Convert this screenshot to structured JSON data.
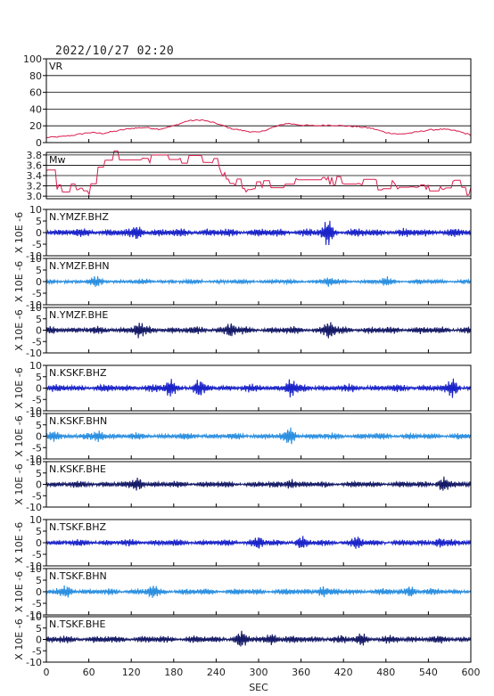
{
  "header": {
    "datetime": "2022/10/27 02:20"
  },
  "colors": {
    "vr_line": "#d81e4e",
    "bhz": "#1a23c8",
    "bhn": "#2b8fe0",
    "bhe": "#151a66",
    "frame": "#000000"
  },
  "chart_data": [
    {
      "type": "line",
      "label": "VR",
      "ylim": [
        0,
        100
      ],
      "yticks": [
        0,
        20,
        40,
        60,
        80,
        100
      ],
      "grid": true,
      "color": "#d81e4e",
      "x": [
        0,
        20,
        40,
        60,
        80,
        100,
        120,
        140,
        160,
        180,
        200,
        220,
        240,
        260,
        280,
        300,
        320,
        340,
        360,
        380,
        400,
        420,
        440,
        460,
        480,
        500,
        520,
        540,
        560,
        580,
        600
      ],
      "y": [
        6,
        7,
        9,
        12,
        11,
        14,
        17,
        18,
        16,
        20,
        26,
        27,
        23,
        17,
        14,
        12,
        18,
        23,
        21,
        20,
        21,
        20,
        19,
        17,
        12,
        10,
        12,
        15,
        16,
        14,
        9
      ]
    },
    {
      "type": "line",
      "label": "Mw",
      "ylim": [
        2.95,
        3.85
      ],
      "yticks": [
        3.0,
        3.2,
        3.4,
        3.6,
        3.8
      ],
      "grid": true,
      "color": "#d81e4e",
      "x": [
        0,
        10,
        20,
        30,
        40,
        50,
        60,
        70,
        80,
        90,
        100,
        110,
        120,
        130,
        140,
        150,
        160,
        170,
        180,
        190,
        200,
        210,
        220,
        230,
        240,
        250,
        260,
        270,
        280,
        290,
        300,
        310,
        320,
        330,
        340,
        350,
        360,
        370,
        380,
        390,
        400,
        410,
        420,
        430,
        440,
        450,
        460,
        470,
        480,
        490,
        500,
        510,
        520,
        530,
        540,
        550,
        560,
        570,
        580,
        590,
        600
      ],
      "y": [
        3.5,
        3.3,
        3.1,
        3.15,
        3.2,
        3.15,
        3.1,
        3.4,
        3.75,
        3.8,
        3.78,
        3.72,
        3.8,
        3.75,
        3.8,
        3.7,
        3.72,
        3.6,
        3.75,
        3.7,
        3.72,
        3.68,
        3.75,
        3.7,
        3.72,
        3.45,
        3.2,
        3.3,
        3.1,
        3.2,
        3.3,
        3.2,
        3.25,
        3.3,
        3.2,
        3.35,
        3.3,
        3.25,
        3.3,
        3.35,
        3.3,
        3.32,
        3.25,
        3.3,
        3.2,
        3.25,
        3.3,
        3.2,
        3.15,
        3.25,
        3.2,
        3.15,
        3.1,
        3.2,
        3.15,
        3.2,
        3.1,
        3.2,
        3.25,
        3.05,
        3.1
      ]
    },
    {
      "type": "line",
      "label": "N.YMZF.BHZ",
      "ylim": [
        -10,
        10
      ],
      "yticks": [
        -10,
        -5,
        0,
        5,
        10
      ],
      "ylabel": "X 10E -6",
      "color": "#1a23c8",
      "amplitude_max": 4.5,
      "events": [
        [
          398,
          3.5
        ],
        [
          130,
          1.5
        ]
      ]
    },
    {
      "type": "line",
      "label": "N.YMZF.BHN",
      "ylim": [
        -10,
        10
      ],
      "yticks": [
        -10,
        -5,
        0,
        5,
        10
      ],
      "ylabel": "X 10E -6",
      "color": "#2b8fe0",
      "amplitude_max": 2.5,
      "events": [
        [
          70,
          1.2
        ],
        [
          400,
          1.2
        ],
        [
          480,
          1.0
        ]
      ]
    },
    {
      "type": "line",
      "label": "N.YMZF.BHE",
      "ylim": [
        -10,
        10
      ],
      "yticks": [
        -10,
        -5,
        0,
        5,
        10
      ],
      "ylabel": "X 10E -6",
      "color": "#151a66",
      "amplitude_max": 4.0,
      "events": [
        [
          130,
          2.0
        ],
        [
          260,
          2.0
        ],
        [
          400,
          2.5
        ]
      ]
    },
    {
      "type": "line",
      "label": "N.KSKF.BHZ",
      "ylim": [
        -10,
        10
      ],
      "yticks": [
        -10,
        -5,
        0,
        5,
        10
      ],
      "ylabel": "X 10E -6",
      "color": "#1a23c8",
      "amplitude_max": 4.0,
      "events": [
        [
          175,
          2.5
        ],
        [
          215,
          2.0
        ],
        [
          345,
          2.5
        ],
        [
          575,
          2.5
        ]
      ]
    },
    {
      "type": "line",
      "label": "N.KSKF.BHN",
      "ylim": [
        -10,
        10
      ],
      "yticks": [
        -10,
        -5,
        0,
        5,
        10
      ],
      "ylabel": "X 10E -6",
      "color": "#2b8fe0",
      "amplitude_max": 3.5,
      "events": [
        [
          345,
          2.5
        ],
        [
          10,
          1.5
        ],
        [
          75,
          1.5
        ]
      ]
    },
    {
      "type": "line",
      "label": "N.KSKF.BHE",
      "ylim": [
        -10,
        10
      ],
      "yticks": [
        -10,
        -5,
        0,
        5,
        10
      ],
      "ylabel": "X 10E -6",
      "color": "#151a66",
      "amplitude_max": 3.5,
      "events": [
        [
          130,
          2.0
        ],
        [
          345,
          1.5
        ],
        [
          560,
          2.0
        ]
      ]
    },
    {
      "type": "line",
      "label": "N.TSKF.BHZ",
      "ylim": [
        -10,
        10
      ],
      "yticks": [
        -10,
        -5,
        0,
        5,
        10
      ],
      "ylabel": "X 10E -6",
      "color": "#1a23c8",
      "amplitude_max": 3.5,
      "events": [
        [
          300,
          1.5
        ],
        [
          360,
          1.5
        ],
        [
          440,
          1.5
        ],
        [
          555,
          1.5
        ]
      ]
    },
    {
      "type": "line",
      "label": "N.TSKF.BHN",
      "ylim": [
        -10,
        10
      ],
      "yticks": [
        -10,
        -5,
        0,
        5,
        10
      ],
      "ylabel": "X 10E -6",
      "color": "#2b8fe0",
      "amplitude_max": 3.5,
      "events": [
        [
          30,
          1.5
        ],
        [
          150,
          1.5
        ],
        [
          390,
          1.5
        ],
        [
          515,
          1.5
        ]
      ]
    },
    {
      "type": "line",
      "label": "N.TSKF.BHE",
      "ylim": [
        -10,
        10
      ],
      "yticks": [
        -10,
        -5,
        0,
        5,
        10
      ],
      "ylabel": "X 10E -6",
      "color": "#151a66",
      "amplitude_max": 4.0,
      "events": [
        [
          275,
          2.0
        ],
        [
          320,
          1.5
        ],
        [
          445,
          1.5
        ]
      ]
    }
  ],
  "x_axis": {
    "label": "SEC",
    "xlim": [
      0,
      600
    ],
    "ticks": [
      0,
      60,
      120,
      180,
      240,
      300,
      360,
      420,
      480,
      540,
      600
    ]
  }
}
